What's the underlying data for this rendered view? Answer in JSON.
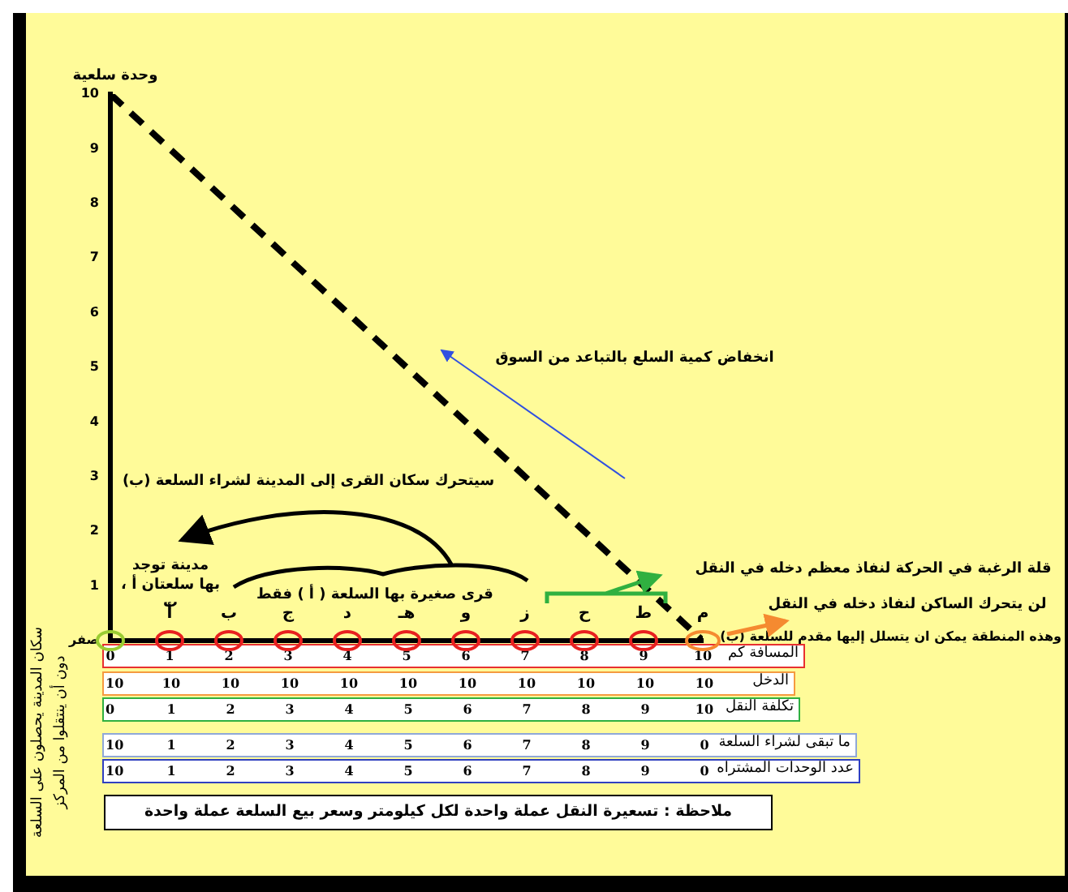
{
  "chart_data": {
    "type": "line",
    "ylabel": "وحدة سلعية",
    "x": [
      0,
      10
    ],
    "series": [
      {
        "color": "#000000",
        "values": [
          10,
          0
        ]
      }
    ],
    "line_style": "dashed",
    "grid": false,
    "legend": false,
    "xlim": [
      0,
      10
    ],
    "xticks": [
      0,
      1,
      2,
      3,
      4,
      5,
      6,
      7,
      8,
      9,
      10
    ],
    "ylim": [
      0,
      10
    ],
    "yticks": [
      {
        "value": 0,
        "label": "صفر"
      },
      1,
      2,
      3,
      4,
      5,
      6,
      7,
      8,
      9,
      10
    ],
    "annotations": [
      "انخفاض كمية السلع بالتباعد من السوق",
      "سيتحرك سكان القرى إلى المدينة لشراء السلعة (ب)",
      "مدينة توجد بها سلعتان أ ، ب",
      "قرى صغيرة بها السلعة ( أ ) فقط",
      "قلة الرغبة في الحركة لنفاذ معظم دخله في النقل",
      "لن يتحرك الساكن لنفاذ دخله في النقل",
      "وهذه المنطقة يمكن ان يتسلل إليها مقدم للسلعة (ب)",
      "سكان المدينة يحصلون على السلعة دون أن ينتقلوا من المركز",
      "ملاحظة : تسعيرة النقل عملة واحدة لكل كيلومتر وسعر بيع السلعة عملة واحدة",
      {
        "text": "أ",
        "x": 1,
        "y": 0
      },
      {
        "text": "ب",
        "x": 2,
        "y": 0
      },
      {
        "text": "ج",
        "x": 3,
        "y": 0
      },
      {
        "text": "د",
        "x": 4,
        "y": 0
      },
      {
        "text": "هـ",
        "x": 5,
        "y": 0
      },
      {
        "text": "و",
        "x": 6,
        "y": 0
      },
      {
        "text": "ز",
        "x": 7,
        "y": 0
      },
      {
        "text": "ح",
        "x": 8,
        "y": 0
      },
      {
        "text": "ط",
        "x": 9,
        "y": 0
      },
      {
        "text": "م",
        "x": 10,
        "y": 0
      },
      "المسافة كم",
      "الدخل",
      "10",
      "10",
      "10",
      "10",
      "10",
      "10",
      "10",
      "10",
      "10",
      "10",
      "10",
      "تكلفة النقل",
      "0",
      "1",
      "2",
      "3",
      "4",
      "5",
      "6",
      "7",
      "8",
      "9",
      "10",
      "ما تبقى لشراء السلعة",
      "10",
      "1",
      "2",
      "3",
      "4",
      "5",
      "6",
      "7",
      "8",
      "9",
      "0",
      "عدد الوحدات المشتراه",
      "10",
      "1",
      "2",
      "3",
      "4",
      "5",
      "6",
      "7",
      "8",
      "9",
      "0"
    ]
  }
}
